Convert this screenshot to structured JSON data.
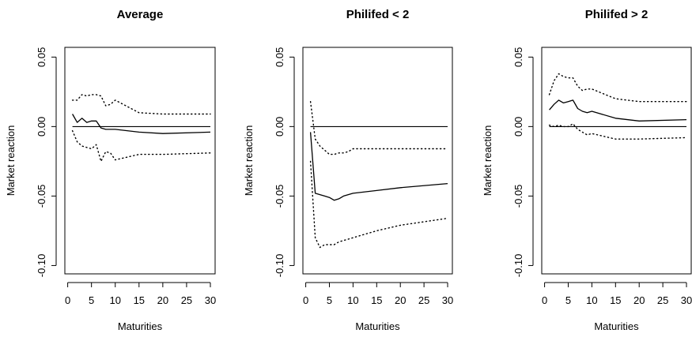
{
  "chart_data": [
    {
      "type": "line",
      "title": "Average",
      "xlabel": "Maturities",
      "ylabel": "Market reaction",
      "xlim": [
        0,
        30
      ],
      "ylim": [
        -0.1,
        0.05
      ],
      "x_ticks": [
        "0",
        "5",
        "10",
        "15",
        "20",
        "25",
        "30"
      ],
      "y_ticks": [
        "-0.10",
        "-0.05",
        "0.00",
        "0.05"
      ],
      "series": [
        {
          "style": "solid",
          "x": [
            1,
            2,
            3,
            4,
            5,
            6,
            7,
            8,
            9,
            10,
            15,
            20,
            30
          ],
          "values": [
            0.009,
            0.003,
            0.006,
            0.003,
            0.004,
            0.004,
            -0.001,
            -0.002,
            -0.002,
            -0.002,
            -0.004,
            -0.005,
            -0.004
          ]
        },
        {
          "style": "dotted",
          "x": [
            1,
            2,
            3,
            4,
            5,
            6,
            7,
            8,
            9,
            10,
            15,
            20,
            30
          ],
          "values": [
            0.019,
            0.019,
            0.023,
            0.022,
            0.023,
            0.023,
            0.022,
            0.015,
            0.016,
            0.019,
            0.01,
            0.009,
            0.009
          ]
        },
        {
          "style": "dotted",
          "x": [
            1,
            2,
            3,
            4,
            5,
            6,
            7,
            8,
            9,
            10,
            15,
            20,
            30
          ],
          "values": [
            -0.003,
            -0.011,
            -0.014,
            -0.015,
            -0.016,
            -0.013,
            -0.025,
            -0.018,
            -0.019,
            -0.024,
            -0.02,
            -0.02,
            -0.019
          ]
        },
        {
          "style": "reference",
          "x": [
            1,
            30
          ],
          "values": [
            0,
            0
          ]
        }
      ]
    },
    {
      "type": "line",
      "title": "Philifed < 2",
      "xlabel": "Maturities",
      "ylabel": "Market reaction",
      "xlim": [
        0,
        30
      ],
      "ylim": [
        -0.1,
        0.05
      ],
      "x_ticks": [
        "0",
        "5",
        "10",
        "15",
        "20",
        "25",
        "30"
      ],
      "y_ticks": [
        "-0.10",
        "-0.05",
        "0.00",
        "0.05"
      ],
      "series": [
        {
          "style": "solid",
          "x": [
            1,
            2,
            3,
            4,
            5,
            6,
            7,
            8,
            9,
            10,
            15,
            20,
            30
          ],
          "values": [
            -0.004,
            -0.048,
            -0.049,
            -0.05,
            -0.051,
            -0.053,
            -0.052,
            -0.05,
            -0.049,
            -0.048,
            -0.046,
            -0.044,
            -0.041
          ]
        },
        {
          "style": "dotted",
          "x": [
            1,
            2,
            3,
            4,
            5,
            6,
            7,
            8,
            9,
            10,
            15,
            20,
            30
          ],
          "values": [
            0.018,
            -0.009,
            -0.014,
            -0.017,
            -0.02,
            -0.02,
            -0.019,
            -0.019,
            -0.018,
            -0.016,
            -0.016,
            -0.016,
            -0.016
          ]
        },
        {
          "style": "dotted",
          "x": [
            1,
            2,
            3,
            4,
            5,
            6,
            7,
            8,
            9,
            10,
            15,
            20,
            30
          ],
          "values": [
            -0.025,
            -0.08,
            -0.087,
            -0.085,
            -0.085,
            -0.085,
            -0.083,
            -0.082,
            -0.081,
            -0.08,
            -0.075,
            -0.071,
            -0.066
          ]
        },
        {
          "style": "reference",
          "x": [
            1,
            30
          ],
          "values": [
            0,
            0
          ]
        }
      ]
    },
    {
      "type": "line",
      "title": "Philifed > 2",
      "xlabel": "Maturities",
      "ylabel": "Market reaction",
      "xlim": [
        0,
        30
      ],
      "ylim": [
        -0.1,
        0.05
      ],
      "x_ticks": [
        "0",
        "5",
        "10",
        "15",
        "20",
        "25",
        "30"
      ],
      "y_ticks": [
        "-0.10",
        "-0.05",
        "0.00",
        "0.05"
      ],
      "series": [
        {
          "style": "solid",
          "x": [
            1,
            2,
            3,
            4,
            5,
            6,
            7,
            8,
            9,
            10,
            15,
            20,
            30
          ],
          "values": [
            0.012,
            0.016,
            0.019,
            0.017,
            0.018,
            0.019,
            0.013,
            0.011,
            0.01,
            0.011,
            0.006,
            0.004,
            0.005
          ]
        },
        {
          "style": "dotted",
          "x": [
            1,
            2,
            3,
            4,
            5,
            6,
            7,
            8,
            9,
            10,
            15,
            20,
            30
          ],
          "values": [
            0.023,
            0.033,
            0.038,
            0.036,
            0.035,
            0.035,
            0.029,
            0.026,
            0.027,
            0.027,
            0.02,
            0.018,
            0.018
          ]
        },
        {
          "style": "dotted",
          "x": [
            1,
            2,
            3,
            4,
            5,
            6,
            7,
            8,
            9,
            10,
            15,
            20,
            30
          ],
          "values": [
            0.001,
            0.0,
            0.001,
            0.0,
            0.0,
            0.002,
            -0.002,
            -0.004,
            -0.006,
            -0.005,
            -0.009,
            -0.009,
            -0.008
          ]
        },
        {
          "style": "reference",
          "x": [
            1,
            30
          ],
          "values": [
            0,
            0
          ]
        }
      ]
    }
  ]
}
